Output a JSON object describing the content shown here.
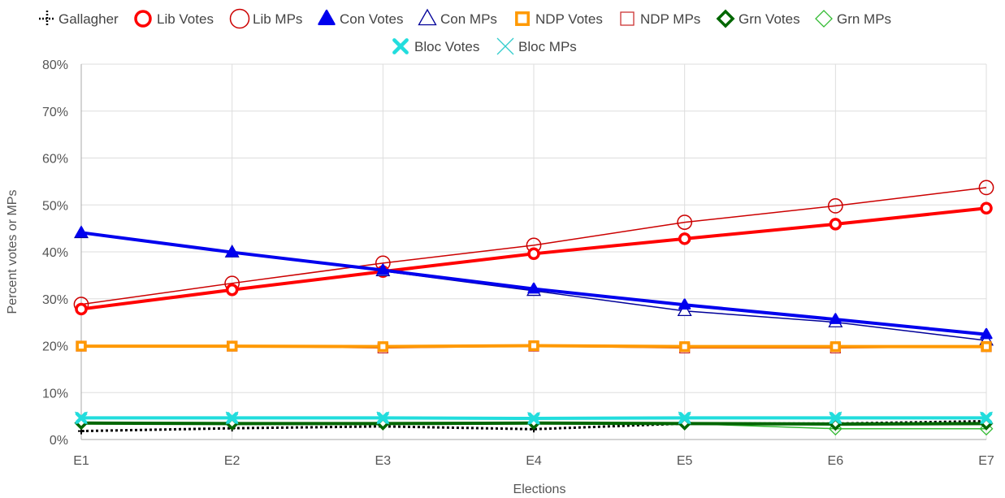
{
  "chart_data": {
    "type": "line",
    "xlabel": "Elections",
    "ylabel": "Percent votes or MPs",
    "ylim": [
      0,
      80
    ],
    "y_tick_suffix": "%",
    "y_ticks": [
      0,
      10,
      20,
      30,
      40,
      50,
      60,
      70,
      80
    ],
    "grid": true,
    "legend_position": "top",
    "categories": [
      "E1",
      "E2",
      "E3",
      "E4",
      "E5",
      "E6",
      "E7"
    ],
    "series": [
      {
        "name": "Gallagher",
        "color": "#000000",
        "marker": "plus",
        "style": "dotted",
        "width": 3,
        "values": [
          1.8,
          2.4,
          2.8,
          2.2,
          3.4,
          3.4,
          3.9
        ]
      },
      {
        "name": "Lib Votes",
        "color": "#ff0000",
        "marker": "circle",
        "style": "solid",
        "width": 4,
        "values": [
          27.8,
          31.9,
          35.8,
          39.6,
          42.8,
          45.9,
          49.3
        ]
      },
      {
        "name": "Lib MPs",
        "color": "#cc0000",
        "marker": "circle-open",
        "style": "solid",
        "width": 1.5,
        "values": [
          28.8,
          33.3,
          37.6,
          41.4,
          46.3,
          49.8,
          53.7
        ]
      },
      {
        "name": "Con Votes",
        "color": "#0000ee",
        "marker": "triangle",
        "style": "solid",
        "width": 4,
        "values": [
          44.1,
          39.9,
          36.1,
          32.1,
          28.7,
          25.6,
          22.4
        ]
      },
      {
        "name": "Con MPs",
        "color": "#000099",
        "marker": "triangle-open",
        "style": "solid",
        "width": 1.5,
        "values": [
          44.0,
          39.9,
          35.9,
          31.7,
          27.4,
          25.0,
          21.1
        ]
      },
      {
        "name": "NDP Votes",
        "color": "#ff9900",
        "marker": "square",
        "style": "solid",
        "width": 4,
        "values": [
          19.9,
          19.9,
          19.8,
          20.0,
          19.8,
          19.8,
          19.8
        ]
      },
      {
        "name": "NDP MPs",
        "color": "#cc3333",
        "marker": "square-open",
        "style": "solid",
        "width": 1.5,
        "values": [
          19.9,
          19.9,
          19.5,
          19.9,
          19.5,
          19.5,
          19.8
        ]
      },
      {
        "name": "Grn Votes",
        "color": "#006600",
        "marker": "diamond",
        "style": "solid",
        "width": 4,
        "values": [
          3.5,
          3.4,
          3.4,
          3.5,
          3.4,
          3.3,
          3.4
        ]
      },
      {
        "name": "Grn MPs",
        "color": "#33bb33",
        "marker": "diamond-open",
        "style": "solid",
        "width": 1.5,
        "values": [
          3.5,
          3.4,
          3.4,
          3.5,
          3.4,
          2.3,
          2.3
        ]
      },
      {
        "name": "Bloc Votes",
        "color": "#22dddd",
        "marker": "x",
        "style": "solid",
        "width": 4,
        "values": [
          4.6,
          4.6,
          4.6,
          4.5,
          4.6,
          4.6,
          4.6
        ]
      },
      {
        "name": "Bloc MPs",
        "color": "#33cccc",
        "marker": "x-thin",
        "style": "solid",
        "width": 1.5,
        "values": [
          4.6,
          4.6,
          4.6,
          4.5,
          4.6,
          4.6,
          4.6
        ]
      }
    ]
  }
}
